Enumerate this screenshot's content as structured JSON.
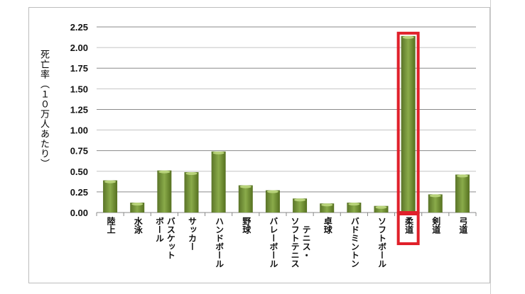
{
  "chart_data": {
    "type": "bar",
    "title": "",
    "xlabel": "",
    "ylabel": "死亡率（１０万人あたり）",
    "ylim": [
      0,
      2.25
    ],
    "yticks": [
      "0.00",
      "0.25",
      "0.50",
      "0.75",
      "1.00",
      "1.25",
      "1.50",
      "1.75",
      "2.00",
      "2.25"
    ],
    "grid": true,
    "categories": [
      "陸上",
      "水泳",
      "バスケットボール",
      "サッカー",
      "ハンドボール",
      "野球",
      "バレーボール",
      "テニス・ソフトテニス",
      "卓球",
      "バドミントン",
      "ソフトボール",
      "柔道",
      "剣道",
      "弓道"
    ],
    "category_lines": [
      [
        "陸上"
      ],
      [
        "水泳"
      ],
      [
        "バスケット",
        "ボール"
      ],
      [
        "サッカー"
      ],
      [
        "ハンドボール"
      ],
      [
        "野球"
      ],
      [
        "バレーボール"
      ],
      [
        "テニス・",
        "ソフトテニス"
      ],
      [
        "卓球"
      ],
      [
        "バドミントン"
      ],
      [
        "ソフトボール"
      ],
      [
        "柔道"
      ],
      [
        "剣道"
      ],
      [
        "弓道"
      ]
    ],
    "values": [
      0.39,
      0.12,
      0.51,
      0.49,
      0.74,
      0.33,
      0.27,
      0.17,
      0.11,
      0.12,
      0.08,
      2.14,
      0.22,
      0.46
    ],
    "highlighted": "柔道",
    "bar_color": "#77933c",
    "highlight_color": "#e0202a"
  }
}
